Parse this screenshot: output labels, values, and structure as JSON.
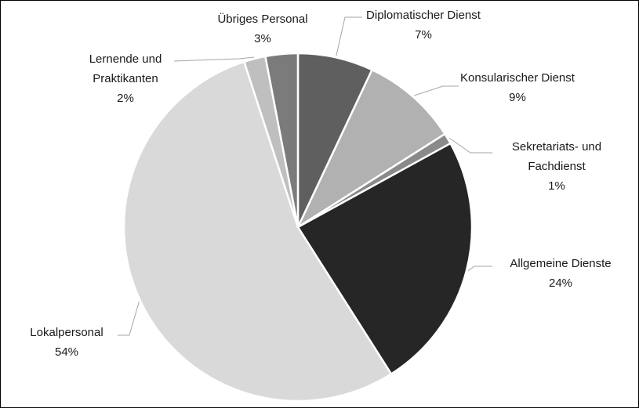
{
  "chart_data": {
    "type": "pie",
    "categories": [
      [
        "Diplomatischer Dienst"
      ],
      [
        "Konsularischer Dienst"
      ],
      [
        "Sekretariats- und",
        "Fachdienst"
      ],
      [
        "Allgemeine Dienste"
      ],
      [
        "Lokalpersonal"
      ],
      [
        "Lernende und",
        "Praktikanten"
      ],
      [
        "Übriges Personal"
      ]
    ],
    "values": [
      7,
      9,
      1,
      24,
      54,
      2,
      3
    ],
    "value_labels": [
      "7%",
      "9%",
      "1%",
      "24%",
      "54%",
      "2%",
      "3%"
    ],
    "colors": [
      "#5f5f5f",
      "#b1b1b1",
      "#8a8a8a",
      "#262626",
      "#d9d9d9",
      "#bfbfbf",
      "#7b7b7b"
    ]
  }
}
